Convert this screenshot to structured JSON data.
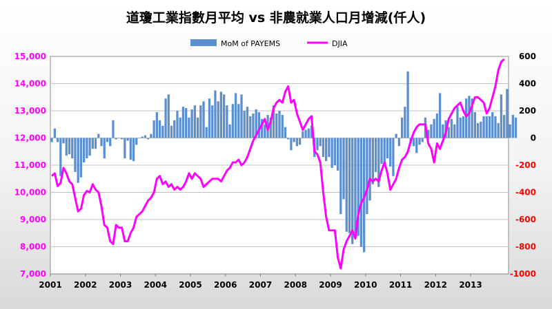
{
  "chart_data": {
    "type": "bar+line",
    "title": "道瓊工業指數月平均  vs  非農就業人口月增減(仟人)",
    "legend": {
      "placement": "top-center",
      "entries": [
        "MoM of PAYEMS",
        "DJIA"
      ]
    },
    "colors": {
      "bar": "#5b8fd0",
      "line": "#ff00ff",
      "negative_tick": "#ff0000"
    },
    "grid": true,
    "x_axis": {
      "labels": [
        "2001",
        "2002",
        "2003",
        "2004",
        "2005",
        "2006",
        "2007",
        "2008",
        "2009",
        "2010",
        "2011",
        "2012",
        "2013"
      ],
      "start": "2001-01"
    },
    "y_left": {
      "series": "DJIA",
      "range": [
        7000,
        15000
      ],
      "ticks": [
        "7,000",
        "8,000",
        "9,000",
        "10,000",
        "11,000",
        "12,000",
        "13,000",
        "14,000",
        "15,000"
      ]
    },
    "y_right": {
      "series": "MoM of PAYEMS",
      "range": [
        -1000,
        600
      ],
      "ticks": [
        "-1000",
        "-800",
        "-600",
        "-400",
        "-200",
        "0",
        "200",
        "400",
        "600"
      ]
    },
    "series": [
      {
        "name": "MoM of PAYEMS",
        "type": "bar",
        "axis": "right",
        "values": [
          -30,
          70,
          -30,
          -280,
          -40,
          -130,
          -120,
          -150,
          -250,
          -330,
          -290,
          -180,
          -150,
          -130,
          -80,
          -80,
          30,
          -60,
          -150,
          -30,
          -60,
          130,
          -10,
          0,
          -10,
          -150,
          -20,
          -160,
          -170,
          -50,
          0,
          10,
          20,
          -10,
          30,
          130,
          190,
          130,
          90,
          290,
          320,
          90,
          130,
          200,
          150,
          230,
          220,
          150,
          210,
          240,
          150,
          240,
          270,
          80,
          290,
          240,
          350,
          270,
          340,
          320,
          240,
          100,
          250,
          330,
          250,
          320,
          200,
          230,
          160,
          180,
          210,
          190,
          140,
          100,
          170,
          150,
          240,
          180,
          200,
          170,
          80,
          -10,
          -90,
          -30,
          -60,
          -50,
          50,
          60,
          70,
          90,
          -140,
          -90,
          -60,
          -140,
          -170,
          -140,
          -220,
          -200,
          -240,
          -560,
          -450,
          -690,
          -700,
          -780,
          -700,
          -720,
          -800,
          -840,
          -560,
          -460,
          -340,
          -250,
          -360,
          -190,
          -210,
          -150,
          -210,
          -280,
          30,
          -60,
          150,
          230,
          490,
          -40,
          -60,
          -110,
          -50,
          -30,
          150,
          60,
          100,
          140,
          180,
          330,
          100,
          130,
          80,
          140,
          100,
          230,
          150,
          160,
          290,
          310,
          290,
          190,
          110,
          120,
          160,
          160,
          160,
          190,
          160,
          110,
          320,
          170,
          360,
          100,
          170,
          150
        ]
      },
      {
        "name": "DJIA",
        "type": "line",
        "axis": "left",
        "values": [
          10600,
          10700,
          10230,
          10350,
          10900,
          10700,
          10400,
          10300,
          9800,
          9300,
          9400,
          9900,
          10050,
          10000,
          10300,
          10100,
          10000,
          9500,
          8800,
          8700,
          8200,
          8100,
          8800,
          8700,
          8700,
          8200,
          8200,
          8500,
          8700,
          9100,
          9200,
          9300,
          9500,
          9700,
          9800,
          10000,
          10500,
          10600,
          10300,
          10400,
          10200,
          10300,
          10100,
          10200,
          10100,
          10200,
          10400,
          10700,
          10500,
          10700,
          10600,
          10500,
          10200,
          10300,
          10400,
          10500,
          10500,
          10500,
          10400,
          10600,
          10800,
          10900,
          11100,
          11100,
          11200,
          11000,
          11100,
          11300,
          11600,
          11900,
          12100,
          12300,
          12500,
          12700,
          12300,
          12600,
          13100,
          13300,
          13400,
          13300,
          13700,
          13900,
          13300,
          13400,
          12900,
          12600,
          12300,
          12500,
          12700,
          12800,
          11500,
          11400,
          11100,
          10000,
          9100,
          8600,
          8600,
          8600,
          7600,
          7200,
          7900,
          8200,
          8400,
          8600,
          8300,
          9200,
          9600,
          9800,
          10100,
          10500,
          10400,
          10500,
          10400,
          10800,
          11100,
          10700,
          10100,
          10300,
          10500,
          10900,
          11200,
          11300,
          11500,
          11900,
          12200,
          12400,
          12500,
          12500,
          12500,
          11800,
          11600,
          11100,
          11800,
          11600,
          11900,
          12200,
          12700,
          12900,
          13100,
          13200,
          13300,
          13000,
          12800,
          12900,
          13200,
          13500,
          13500,
          13400,
          13300,
          12900,
          13100,
          13500,
          13900,
          14500,
          14800,
          14900
        ]
      }
    ]
  }
}
